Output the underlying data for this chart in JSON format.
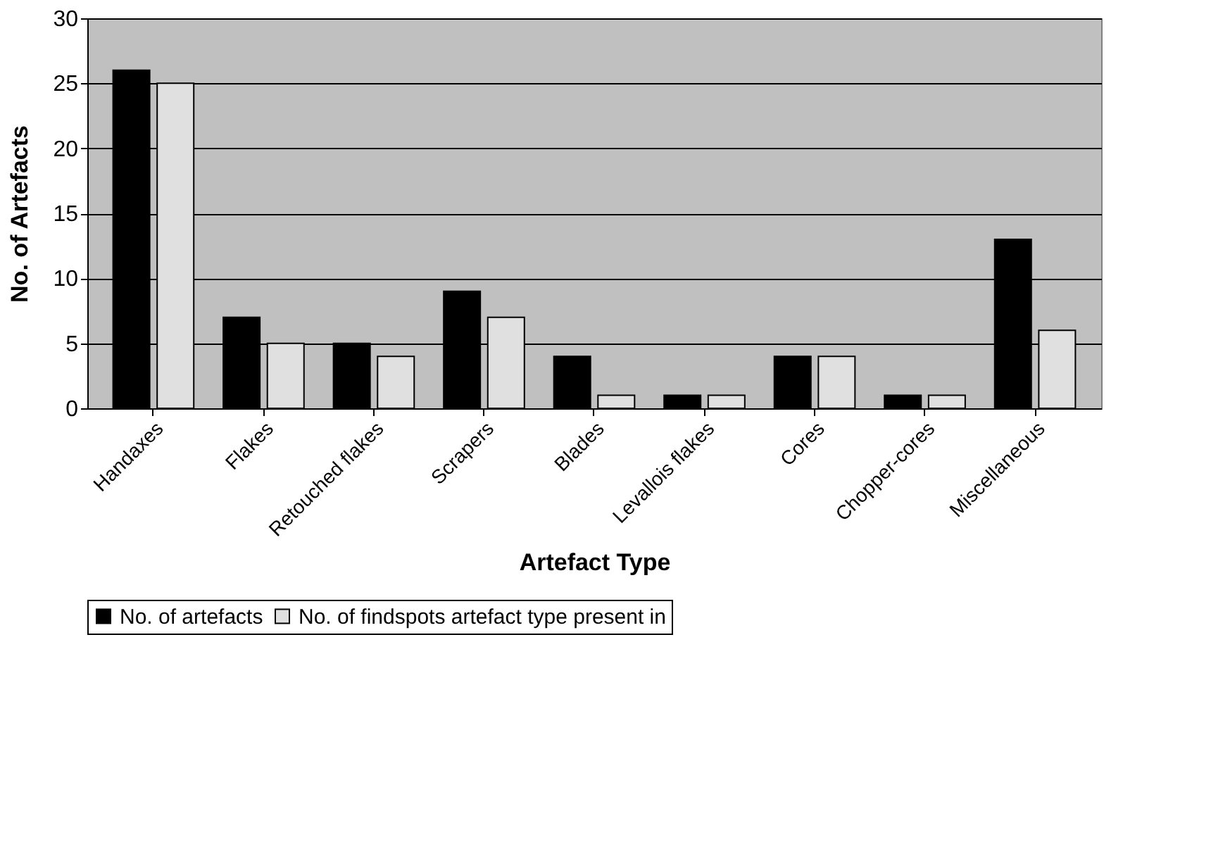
{
  "chart_data": {
    "type": "bar",
    "xlabel": "Artefact Type",
    "ylabel": "No. of Artefacts",
    "categories": [
      "Handaxes",
      "Flakes",
      "Retouched flakes",
      "Scrapers",
      "Blades",
      "Levallois flakes",
      "Cores",
      "Chopper-cores",
      "Miscellaneous"
    ],
    "series": [
      {
        "name": "No. of artefacts",
        "color": "#000000",
        "values": [
          26,
          7,
          5,
          9,
          4,
          1,
          4,
          1,
          13
        ]
      },
      {
        "name": "No. of findspots artefact type present in",
        "color": "#e0e0e0",
        "values": [
          25,
          5,
          4,
          7,
          1,
          1,
          4,
          1,
          6
        ]
      }
    ],
    "ylim": [
      0,
      30
    ],
    "yticks": [
      0,
      5,
      10,
      15,
      20,
      25,
      30
    ],
    "grid": "y",
    "legend": "bottom"
  }
}
